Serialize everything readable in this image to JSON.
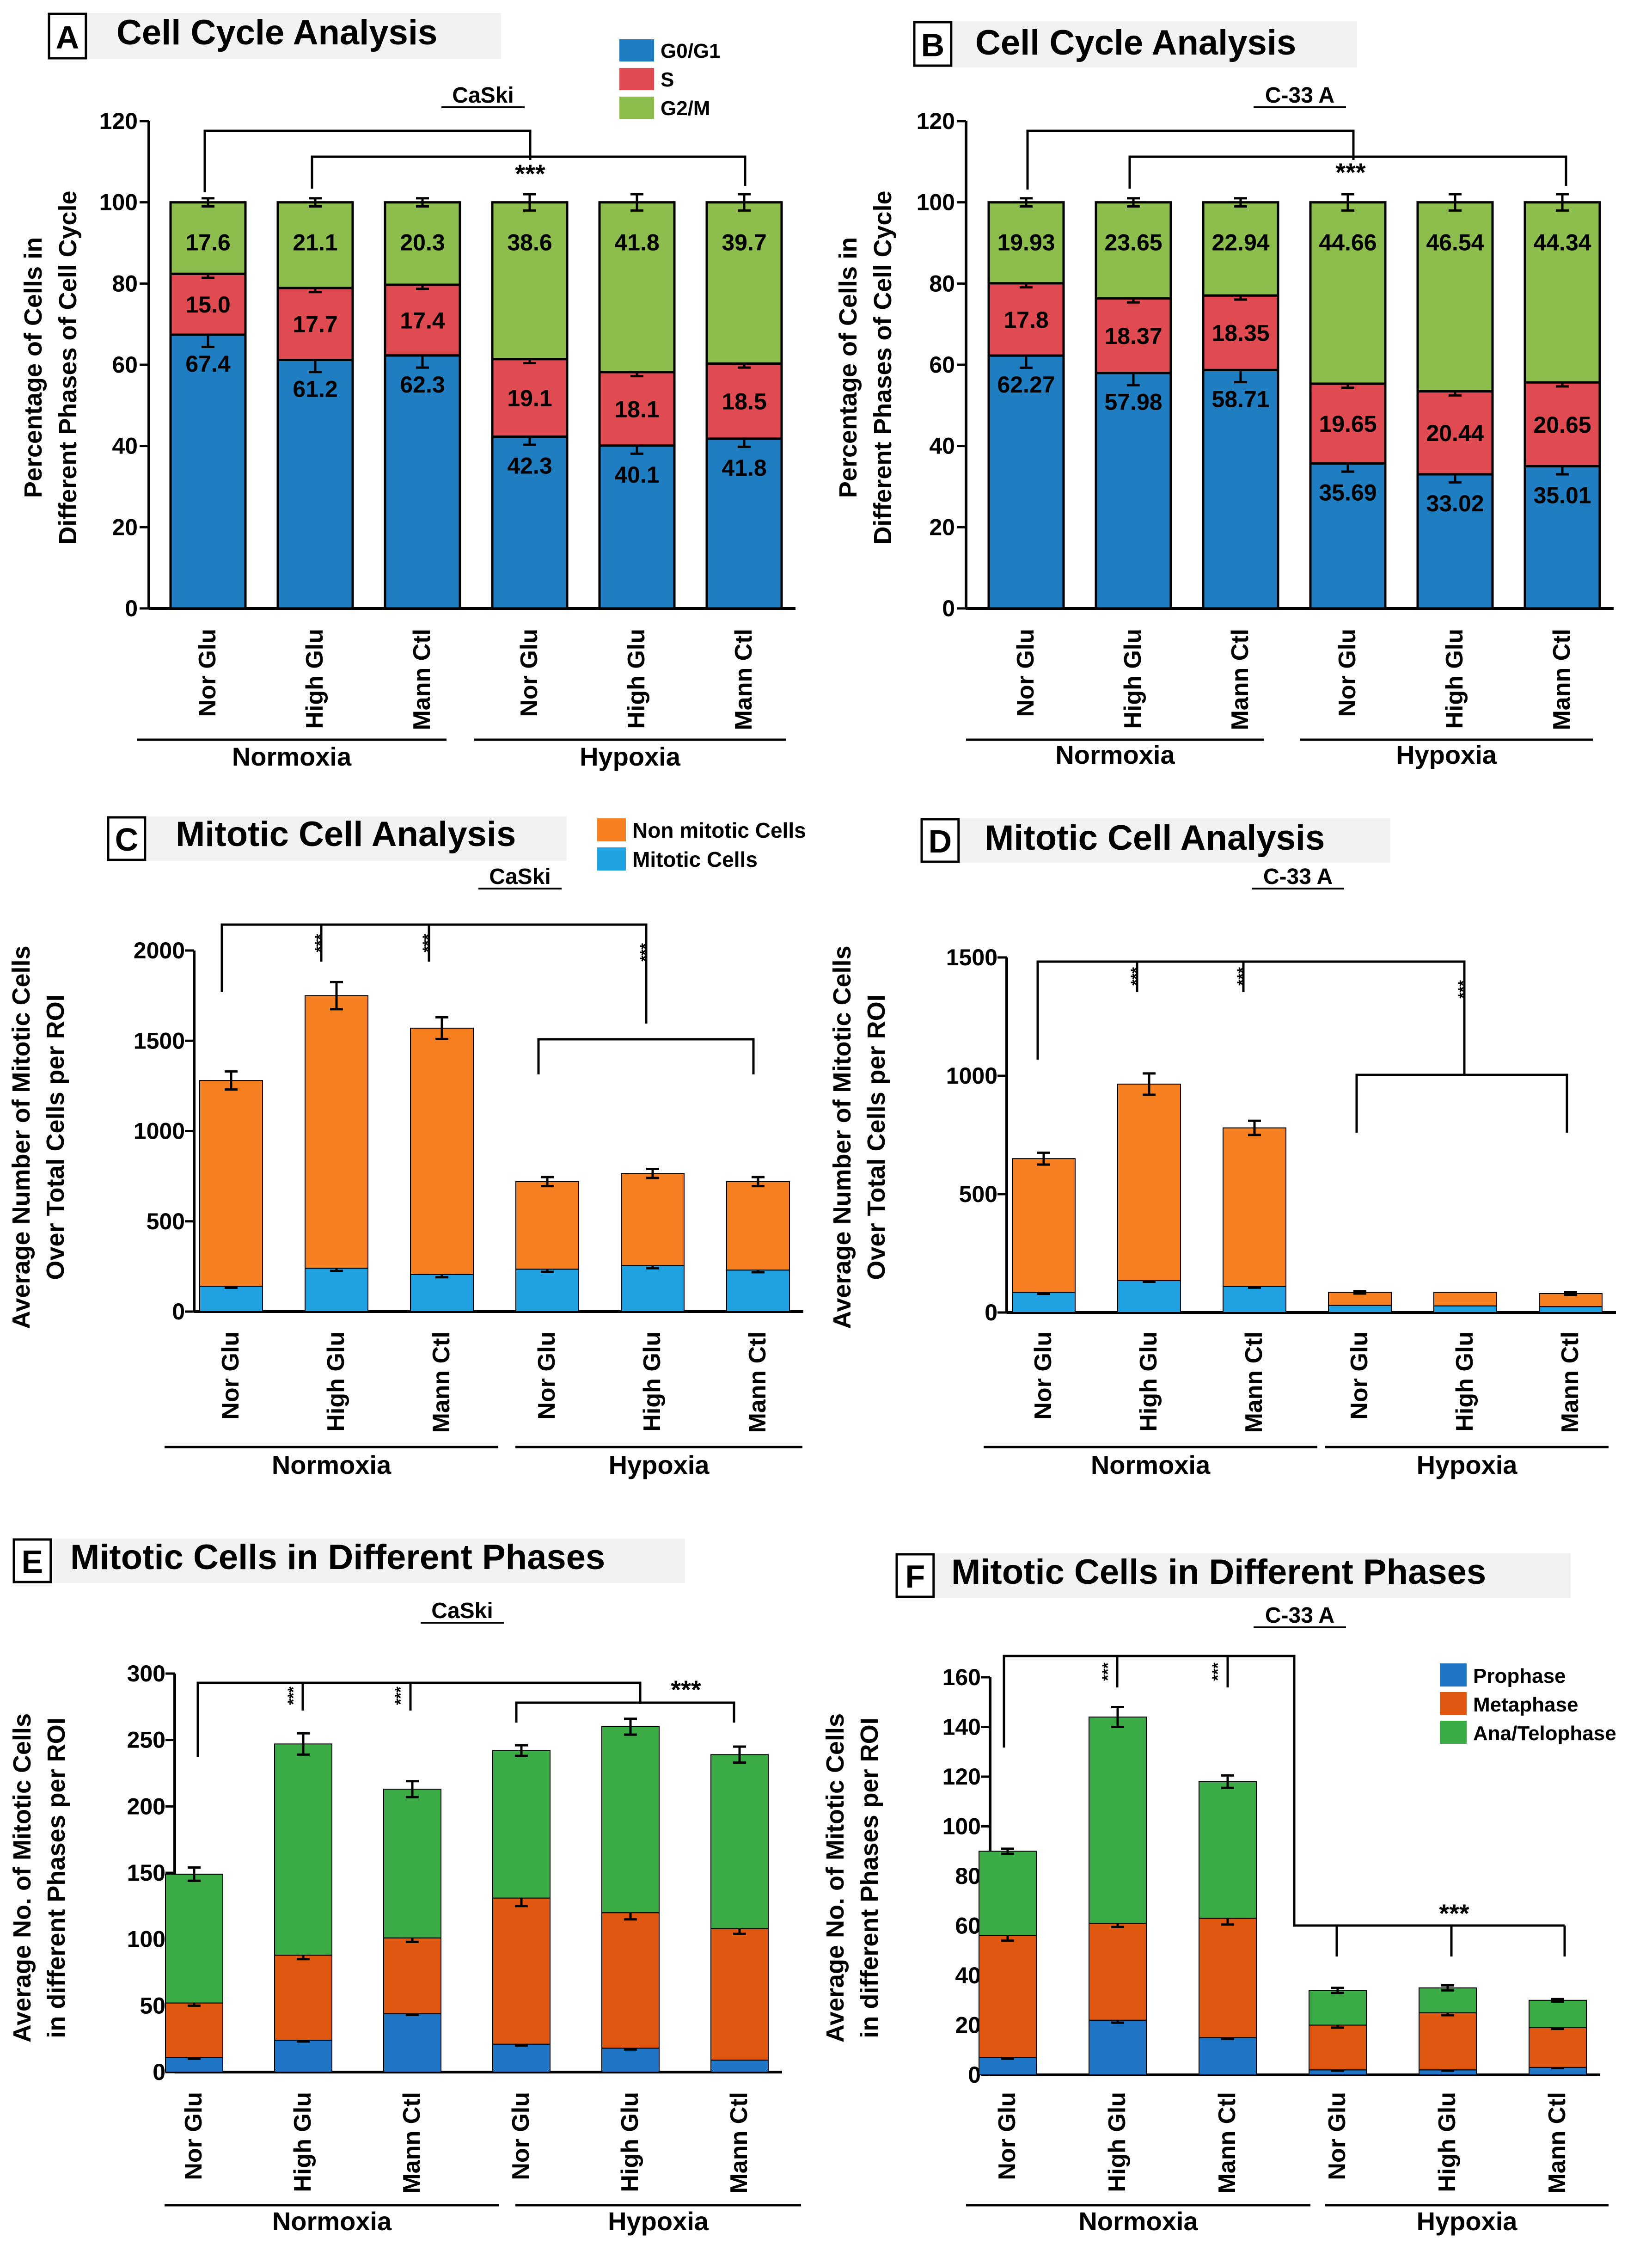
{
  "chart_data": [
    {
      "id": "A",
      "type": "bar",
      "stacked": true,
      "title": "Cell Cycle Analysis",
      "subtitle": "CaSki",
      "ylabel": [
        "Percentage of Cells in",
        "Different Phases of Cell Cycle"
      ],
      "ylim": [
        0,
        120
      ],
      "yticks": [
        0,
        20,
        40,
        60,
        80,
        100,
        120
      ],
      "categories": [
        "Nor Glu",
        "High Glu",
        "Mann Ctl",
        "Nor Glu",
        "High Glu",
        "Mann Ctl"
      ],
      "groups": [
        {
          "label": "Normoxia",
          "from": 0,
          "to": 2
        },
        {
          "label": "Hypoxia",
          "from": 3,
          "to": 5
        }
      ],
      "legend": {
        "position": "top-right",
        "entries": [
          "G0/G1",
          "S",
          "G2/M"
        ]
      },
      "series": [
        {
          "name": "G0/G1",
          "color": "#1f7ec2",
          "values": [
            67.4,
            61.2,
            62.3,
            42.3,
            40.1,
            41.8
          ],
          "labels": [
            "67.4",
            "61.2",
            "62.3",
            "42.3",
            "40.1",
            "41.8"
          ]
        },
        {
          "name": "S",
          "color": "#e04b51",
          "values": [
            15.0,
            17.7,
            17.4,
            19.1,
            18.1,
            18.5
          ],
          "labels": [
            "15.0",
            "17.7",
            "17.4",
            "19.1",
            "18.1",
            "18.5"
          ]
        },
        {
          "name": "G2/M",
          "color": "#8dbd4d",
          "values": [
            17.6,
            21.1,
            20.3,
            38.6,
            41.8,
            39.7
          ],
          "labels": [
            "17.6",
            "21.1",
            "20.3",
            "38.6",
            "41.8",
            "39.7"
          ]
        }
      ],
      "errors": [
        [
          3,
          1,
          1
        ],
        [
          3,
          1,
          1
        ],
        [
          3,
          1,
          1
        ],
        [
          2,
          1,
          2
        ],
        [
          2,
          1,
          2
        ],
        [
          2,
          1,
          2
        ]
      ],
      "significance": "***"
    },
    {
      "id": "B",
      "type": "bar",
      "stacked": true,
      "title": "Cell Cycle Analysis",
      "subtitle": "C-33 A",
      "ylabel": [
        "Percentage of Cells in",
        "Different Phases of Cell Cycle"
      ],
      "ylim": [
        0,
        120
      ],
      "yticks": [
        0,
        20,
        40,
        60,
        80,
        100,
        120
      ],
      "categories": [
        "Nor Glu",
        "High Glu",
        "Mann Ctl",
        "Nor Glu",
        "High Glu",
        "Mann Ctl"
      ],
      "groups": [
        {
          "label": "Normoxia",
          "from": 0,
          "to": 2
        },
        {
          "label": "Hypoxia",
          "from": 3,
          "to": 5
        }
      ],
      "series": [
        {
          "name": "G0/G1",
          "color": "#1f7ec2",
          "values": [
            62.27,
            57.98,
            58.71,
            35.69,
            33.02,
            35.01
          ],
          "labels": [
            "62.27",
            "57.98",
            "58.71",
            "35.69",
            "33.02",
            "35.01"
          ]
        },
        {
          "name": "S",
          "color": "#e04b51",
          "values": [
            17.8,
            18.37,
            18.35,
            19.65,
            20.44,
            20.65
          ],
          "labels": [
            "17.8",
            "18.37",
            "18.35",
            "19.65",
            "20.44",
            "20.65"
          ]
        },
        {
          "name": "G2/M",
          "color": "#8dbd4d",
          "values": [
            19.93,
            23.65,
            22.94,
            44.66,
            46.54,
            44.34
          ],
          "labels": [
            "19.93",
            "23.65",
            "22.94",
            "44.66",
            "46.54",
            "44.34"
          ]
        }
      ],
      "errors": [
        [
          3,
          1,
          1
        ],
        [
          3,
          1,
          1
        ],
        [
          3,
          1,
          1
        ],
        [
          2,
          1,
          2
        ],
        [
          2,
          1,
          2
        ],
        [
          2,
          1,
          2
        ]
      ],
      "significance": "***"
    },
    {
      "id": "C",
      "type": "bar",
      "stacked": true,
      "title": "Mitotic Cell Analysis",
      "subtitle": "CaSki",
      "ylabel": [
        "Average Number of Mitotic Cells",
        "Over Total Cells per ROI"
      ],
      "ylim": [
        0,
        2000
      ],
      "yticks": [
        0,
        500,
        1000,
        1500,
        2000
      ],
      "categories": [
        "Nor Glu",
        "High Glu",
        "Mann Ctl",
        "Nor Glu",
        "High Glu",
        "Mann Ctl"
      ],
      "groups": [
        {
          "label": "Normoxia",
          "from": 0,
          "to": 2
        },
        {
          "label": "Hypoxia",
          "from": 3,
          "to": 5
        }
      ],
      "legend": {
        "position": "top-right",
        "entries": [
          "Non mitotic Cells",
          "Mitotic Cells"
        ]
      },
      "series": [
        {
          "name": "Mitotic Cells",
          "color": "#1fa0e0",
          "values": [
            140,
            240,
            205,
            235,
            255,
            230
          ]
        },
        {
          "name": "Non mitotic Cells",
          "color": "#f6801f",
          "values": [
            1140,
            1510,
            1365,
            485,
            510,
            490
          ]
        }
      ],
      "errors": [
        [
          8,
          50
        ],
        [
          15,
          75
        ],
        [
          15,
          60
        ],
        [
          15,
          25
        ],
        [
          15,
          25
        ],
        [
          12,
          25
        ]
      ],
      "significance": [
        "***",
        "***",
        "***"
      ]
    },
    {
      "id": "D",
      "type": "bar",
      "stacked": true,
      "title": "Mitotic Cell Analysis",
      "subtitle": "C-33 A",
      "ylabel": [
        "Average Number of Mitotic Cells",
        "Over Total Cells per ROI"
      ],
      "ylim": [
        0,
        1500
      ],
      "yticks": [
        0,
        500,
        1000,
        1500
      ],
      "categories": [
        "Nor Glu",
        "High Glu",
        "Mann Ctl",
        "Nor Glu",
        "High Glu",
        "Mann Ctl"
      ],
      "groups": [
        {
          "label": "Normoxia",
          "from": 0,
          "to": 2
        },
        {
          "label": "Hypoxia",
          "from": 3,
          "to": 5
        }
      ],
      "series": [
        {
          "name": "Mitotic Cells",
          "color": "#1fa0e0",
          "values": [
            85,
            135,
            110,
            30,
            28,
            25
          ]
        },
        {
          "name": "Non mitotic Cells",
          "color": "#f6801f",
          "values": [
            565,
            830,
            670,
            55,
            57,
            55
          ]
        }
      ],
      "errors": [
        [
          6,
          25
        ],
        [
          5,
          45
        ],
        [
          5,
          30
        ],
        [
          0,
          5
        ],
        [
          0,
          0
        ],
        [
          0,
          5
        ]
      ],
      "significance": [
        "***",
        "***",
        "***"
      ]
    },
    {
      "id": "E",
      "type": "bar",
      "stacked": true,
      "title": "Mitotic Cells in Different Phases",
      "subtitle": "CaSki",
      "ylabel": [
        "Average No. of Mitotic Cells",
        "in different Phases per ROI"
      ],
      "ylim": [
        0,
        300
      ],
      "yticks": [
        0,
        50,
        100,
        150,
        200,
        250,
        300
      ],
      "categories": [
        "Nor Glu",
        "High Glu",
        "Mann Ctl",
        "Nor Glu",
        "High Glu",
        "Mann Ctl"
      ],
      "groups": [
        {
          "label": "Normoxia",
          "from": 0,
          "to": 2
        },
        {
          "label": "Hypoxia",
          "from": 3,
          "to": 5
        }
      ],
      "series": [
        {
          "name": "Prophase",
          "color": "#1f75c6",
          "values": [
            11,
            24,
            44,
            21,
            18,
            9
          ]
        },
        {
          "name": "Metaphase",
          "color": "#e05810",
          "values": [
            41,
            64,
            57,
            110,
            102,
            99
          ]
        },
        {
          "name": "Ana/Telophase",
          "color": "#3bab45",
          "values": [
            97,
            159,
            112,
            111,
            140,
            131
          ]
        }
      ],
      "errors": [
        [
          1,
          2,
          5
        ],
        [
          1,
          3,
          8
        ],
        [
          1,
          3,
          6
        ],
        [
          1,
          6,
          4
        ],
        [
          1,
          5,
          6
        ],
        [
          0,
          4,
          6
        ]
      ],
      "significance": [
        "***",
        "***",
        "***"
      ]
    },
    {
      "id": "F",
      "type": "bar",
      "stacked": true,
      "title": "Mitotic Cells in Different Phases",
      "subtitle": "C-33 A",
      "ylabel": [
        "Average No. of Mitotic Cells",
        "in different Phases per ROI"
      ],
      "ylim": [
        0,
        160
      ],
      "yticks": [
        0,
        20,
        40,
        60,
        80,
        100,
        120,
        140,
        160
      ],
      "categories": [
        "Nor Glu",
        "High Glu",
        "Mann Ctl",
        "Nor Glu",
        "High Glu",
        "Mann Ctl"
      ],
      "groups": [
        {
          "label": "Normoxia",
          "from": 0,
          "to": 2
        },
        {
          "label": "Hypoxia",
          "from": 3,
          "to": 5
        }
      ],
      "legend": {
        "position": "top-right",
        "entries": [
          "Prophase",
          "Metaphase",
          "Ana/Telophase"
        ]
      },
      "series": [
        {
          "name": "Prophase",
          "color": "#1f75c6",
          "values": [
            7,
            22,
            15,
            2,
            2,
            3
          ]
        },
        {
          "name": "Metaphase",
          "color": "#e05810",
          "values": [
            49,
            39,
            48,
            18,
            23,
            16
          ]
        },
        {
          "name": "Ana/Telophase",
          "color": "#3bab45",
          "values": [
            34,
            83,
            55,
            14,
            10,
            11
          ]
        }
      ],
      "errors": [
        [
          0.5,
          2,
          1
        ],
        [
          1,
          1.5,
          4
        ],
        [
          0.5,
          2.5,
          2.5
        ],
        [
          0.3,
          1,
          1
        ],
        [
          0.3,
          1,
          1
        ],
        [
          0.3,
          0.5,
          0.5
        ]
      ],
      "significance": [
        "***",
        "***",
        "***"
      ]
    }
  ]
}
